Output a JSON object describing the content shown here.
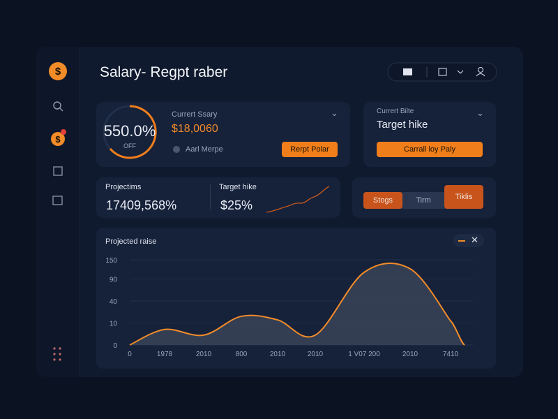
{
  "header": {
    "title": "Salary- Regpt raber"
  },
  "salary_card": {
    "gauge": "550.0%",
    "gauge_sub": "OFF",
    "label": "Currert Ssary",
    "value": "$18,0060",
    "option": "Aarl Merpe",
    "button": "Rerpt Polar"
  },
  "target_card": {
    "label": "Currert Bilte",
    "title": "Target hike",
    "button": "Carrall loy Paly"
  },
  "projection_card": {
    "label": "Projectims",
    "value": "17409,568%",
    "label2": "Target hike",
    "value2": "$25%"
  },
  "tabs": [
    "Stogs",
    "Tirm",
    "Tiklis"
  ],
  "chart": {
    "type": "area",
    "title": "Projected raise",
    "color": "#f28c28",
    "categories": [
      "0",
      "1978",
      "2010",
      "800",
      "2010",
      "2010",
      "1 V07 200",
      "2010",
      "7410"
    ],
    "values": [
      0,
      5,
      2,
      17,
      13,
      2,
      109,
      120,
      12
    ],
    "ylim": [
      0,
      150
    ],
    "yticks": [
      0,
      10,
      40,
      90,
      150
    ],
    "yscale": "sqrt",
    "grid": true
  }
}
